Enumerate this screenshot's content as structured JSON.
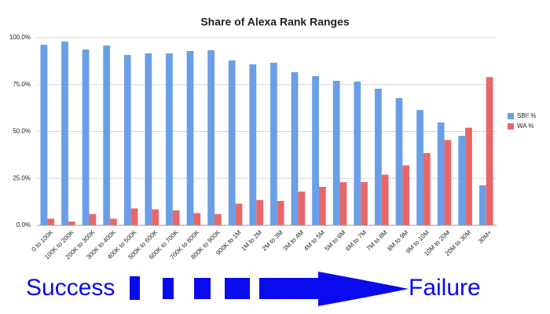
{
  "chart_data": {
    "type": "bar",
    "title": "Share of Alexa Rank Ranges",
    "categories": [
      "0 to 100K",
      "100K to 200K",
      "200K to 300K",
      "300K to 400K",
      "400K to 500K",
      "500K to 600K",
      "600K to 700K",
      "700K to 800K",
      "800K to 900K",
      "900K to 1M",
      "1M to 2M",
      "2M to 3M",
      "3M to 4M",
      "4M to 5M",
      "5M to 6M",
      "6M to 7M",
      "7M to 8M",
      "8M to 9M",
      "9M to 10M",
      "10M to 20M",
      "20M to 30M",
      "30M+"
    ],
    "series": [
      {
        "name": "SBI! %",
        "color": "#6a9ee8",
        "values": [
          96.2,
          97.9,
          93.7,
          95.8,
          90.8,
          91.6,
          91.6,
          92.9,
          93.3,
          87.9,
          85.8,
          86.6,
          81.6,
          79.5,
          77,
          76.6,
          72.8,
          67.8,
          61.5,
          54.8,
          47.7,
          21.3
        ]
      },
      {
        "name": "WA %",
        "color": "#e8686a",
        "values": [
          3.5,
          2,
          6,
          3.5,
          9,
          8.5,
          8,
          6.5,
          6,
          11.5,
          13.5,
          13,
          18,
          20.5,
          23,
          23,
          27,
          32,
          38.5,
          45.5,
          52,
          79
        ]
      }
    ],
    "ylim": [
      0,
      100
    ],
    "yticks": [
      {
        "value": 0,
        "label": "0.0%"
      },
      {
        "value": 25,
        "label": "25.0%"
      },
      {
        "value": 50,
        "label": "50.0%"
      },
      {
        "value": 75,
        "label": "75.0%"
      },
      {
        "value": 100,
        "label": "100.0%"
      }
    ],
    "grid": true,
    "legend": "right",
    "annotations": [
      "Success",
      "Failure"
    ]
  }
}
